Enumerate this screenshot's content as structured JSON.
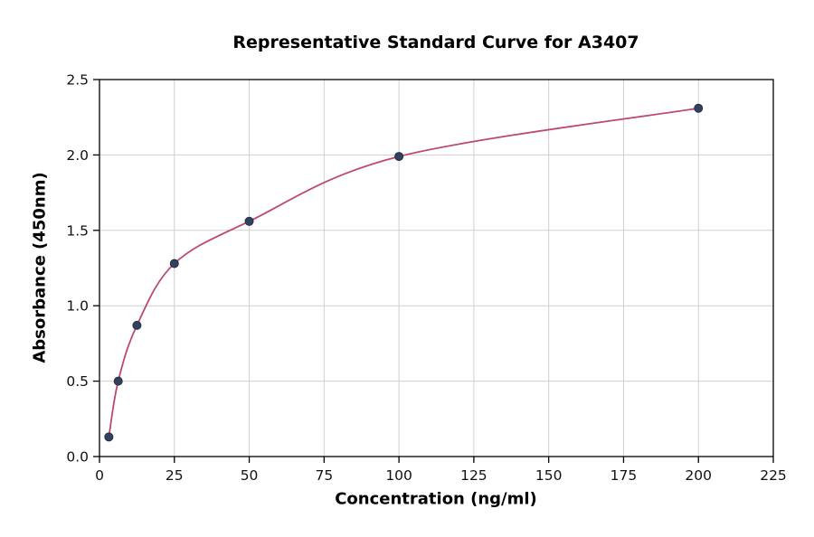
{
  "chart_data": {
    "type": "scatter",
    "title": "Representative Standard Curve for A3407",
    "xlabel": "Concentration (ng/ml)",
    "ylabel": "Absorbance (450nm)",
    "xlim": [
      0,
      225
    ],
    "ylim": [
      0,
      2.5
    ],
    "xticks": [
      0,
      25,
      50,
      75,
      100,
      125,
      150,
      175,
      200,
      225
    ],
    "xtick_labels": [
      "0",
      "25",
      "50",
      "75",
      "100",
      "125",
      "150",
      "175",
      "200",
      "225"
    ],
    "yticks": [
      0,
      0.5,
      1,
      1.5,
      2,
      2.5
    ],
    "ytick_labels": [
      "0.0",
      "0.5",
      "1.0",
      "1.5",
      "2.0",
      "2.5"
    ],
    "grid": true,
    "legend": false,
    "series": [
      {
        "name": "standards",
        "marker": "circle",
        "x": [
          3.125,
          6.25,
          12.5,
          25,
          50,
          100,
          200
        ],
        "y": [
          0.13,
          0.5,
          0.87,
          1.28,
          1.56,
          1.99,
          2.31
        ]
      }
    ],
    "fit_curve_through_points": true,
    "colors": {
      "point": "#32415f",
      "point_edge": "#222e44",
      "line": "#bc4a6d",
      "grid": "#cfcfcf",
      "axis": "#000000",
      "tick_text": "#111111"
    }
  }
}
